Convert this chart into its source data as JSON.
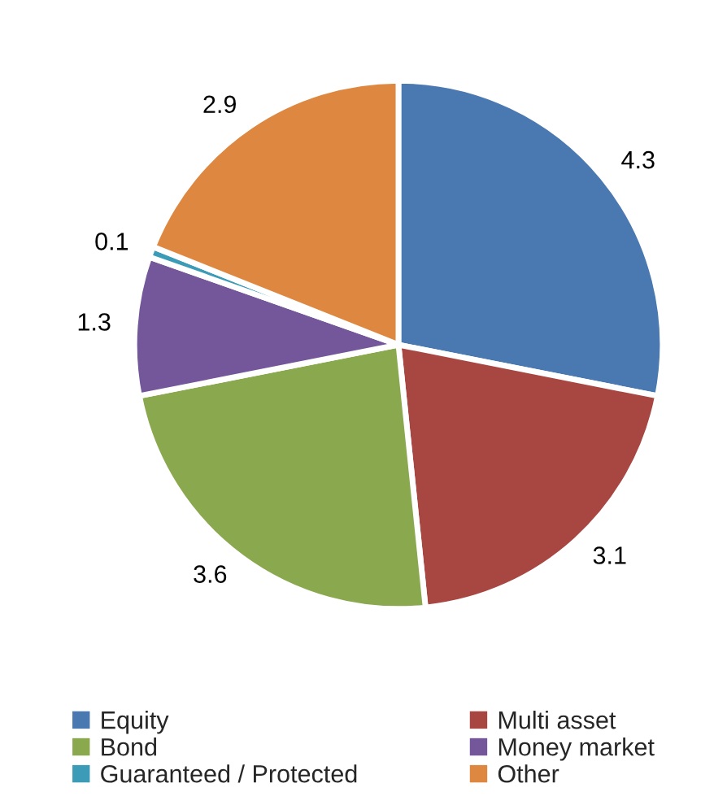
{
  "chart_data": {
    "type": "pie",
    "categories": [
      "Equity",
      "Multi asset",
      "Bond",
      "Money market",
      "Guaranteed / Protected",
      "Other"
    ],
    "values": [
      4.3,
      3.1,
      3.6,
      1.3,
      0.1,
      2.9
    ],
    "colors": [
      "#4a78b0",
      "#a84642",
      "#8aa84e",
      "#74579a",
      "#3c9cb8",
      "#dd8740"
    ],
    "data_labels": true,
    "legend": "bottom"
  }
}
